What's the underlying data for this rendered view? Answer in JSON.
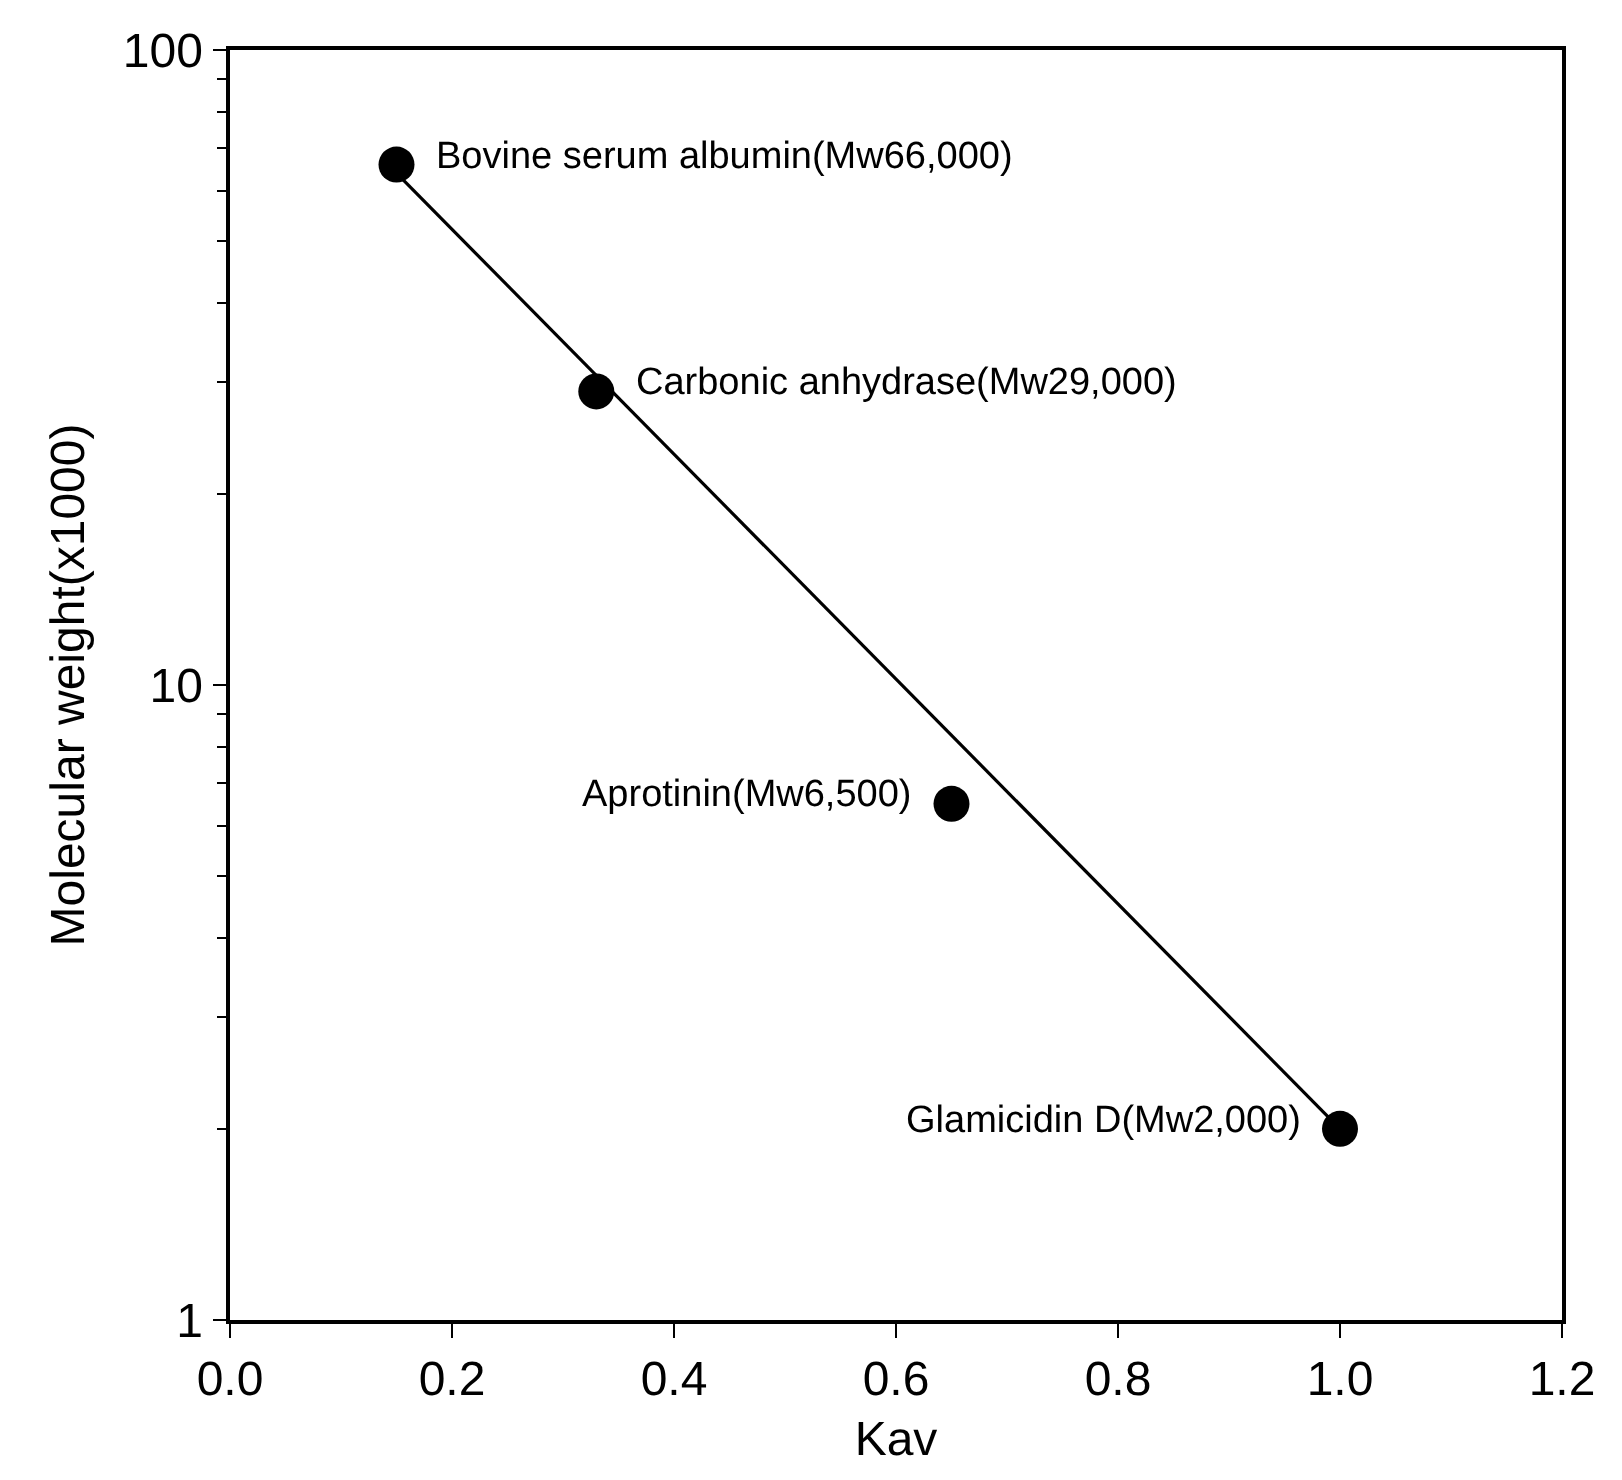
{
  "chart_data": {
    "type": "scatter",
    "xlabel": "Kav",
    "ylabel": "Molecular weight(x1000)",
    "log": "y",
    "series": [
      {
        "x": [
          0.15,
          0.33,
          0.65,
          1.0
        ],
        "values": [
          66,
          29,
          6.5,
          2.0
        ],
        "color": "#000000",
        "marker": "circle"
      },
      {
        "type": "line",
        "x": [
          0.15,
          1.0
        ],
        "values": [
          64,
          2.0
        ],
        "color": "#000000",
        "line_style": "solid"
      }
    ],
    "annotations": [
      {
        "text": "Bovine serum albumin(Mw66,000)",
        "x": 0.15,
        "y": 66
      },
      {
        "text": "Carbonic anhydrase(Mw29,000)",
        "x": 0.33,
        "y": 29
      },
      {
        "text": "Aprotinin(Mw6,500)",
        "x": 0.65,
        "y": 6.5
      },
      {
        "text": "Glamicidin D(Mw2,000)",
        "x": 1.0,
        "y": 2.0
      }
    ],
    "xlim": [
      0.0,
      1.2
    ],
    "xticks": [
      {
        "value": 0,
        "label": "0.0"
      },
      0.2,
      0.4,
      0.6,
      0.8,
      {
        "value": 1,
        "label": "1.0"
      },
      1.2
    ],
    "ylim": [
      1,
      100
    ],
    "yticks": [
      1,
      10,
      100
    ]
  }
}
